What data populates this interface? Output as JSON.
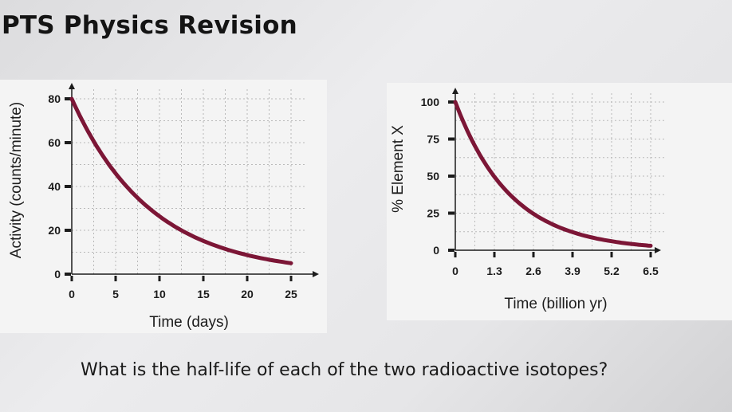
{
  "slide": {
    "title": "PTS Physics Revision",
    "question": "What is the half-life of each of the two radioactive isotopes?"
  },
  "colors": {
    "curve": "#7c1636",
    "axis": "#1c1c1c",
    "grid": "#b9b9b9"
  },
  "chart_data": [
    {
      "type": "line",
      "title": "",
      "xlabel": "Time (days)",
      "ylabel": "Activity (counts/minute)",
      "x_ticks": [
        "0",
        "5",
        "10",
        "15",
        "20",
        "25"
      ],
      "y_ticks": [
        "0",
        "20",
        "40",
        "60",
        "80"
      ],
      "xlim": [
        0,
        25
      ],
      "ylim": [
        0,
        80
      ],
      "grid": true,
      "series": [
        {
          "x": [
            0,
            2.5,
            5,
            7.5,
            10,
            12.5,
            15,
            17.5,
            20,
            22.5,
            25
          ],
          "y": [
            80,
            62,
            48,
            37,
            28,
            21,
            16,
            12,
            9,
            7,
            5
          ]
        }
      ]
    },
    {
      "type": "line",
      "title": "",
      "xlabel": "Time (billion yr)",
      "ylabel": "% Element X",
      "x_ticks": [
        "0",
        "1.3",
        "2.6",
        "3.9",
        "5.2",
        "6.5"
      ],
      "y_ticks": [
        "0",
        "25",
        "50",
        "75",
        "100"
      ],
      "xlim": [
        0,
        6.5
      ],
      "ylim": [
        0,
        100
      ],
      "grid": true,
      "series": [
        {
          "x": [
            0,
            0.65,
            1.3,
            1.95,
            2.6,
            3.25,
            3.9,
            4.55,
            5.2,
            5.85,
            6.5
          ],
          "y": [
            100,
            70,
            50,
            35,
            25,
            18,
            12,
            9,
            6,
            4,
            3
          ]
        }
      ]
    }
  ]
}
